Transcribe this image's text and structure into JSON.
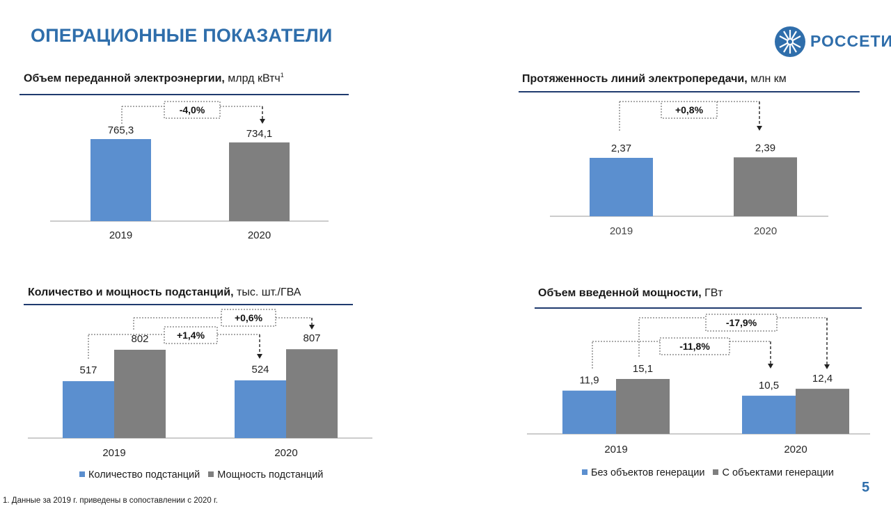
{
  "page": {
    "title": "ОПЕРАЦИОННЫЕ ПОКАЗАТЕЛИ",
    "logo_text": "РОССЕТИ",
    "footnote": "1. Данные за 2019 г. приведены в сопоставлении с 2020 г.",
    "page_number": "5"
  },
  "colors": {
    "blue": "#5b8fcf",
    "gray": "#7f7f7f",
    "accent": "#2f6eab",
    "rule": "#1f3a6e"
  },
  "chart_data": [
    {
      "id": "energy",
      "type": "bar",
      "title_bold": "Объем переданной электроэнергии,",
      "title_unit": "млрд кВтч",
      "title_sup": "1",
      "categories": [
        "2019",
        "2020"
      ],
      "values": [
        765.3,
        734.1
      ],
      "value_labels": [
        "765,3",
        "734,1"
      ],
      "change_labels": [
        "-4,0%"
      ]
    },
    {
      "id": "lines",
      "type": "bar",
      "title_bold": "Протяженность линий электропередачи,",
      "title_unit": "млн км",
      "categories": [
        "2019",
        "2020"
      ],
      "values": [
        2.37,
        2.39
      ],
      "value_labels": [
        "2,37",
        "2,39"
      ],
      "change_labels": [
        "+0,8%"
      ]
    },
    {
      "id": "substations",
      "type": "bar",
      "title_bold": "Количество и мощность подстанций,",
      "title_unit": "тыс. шт./ГВА",
      "categories": [
        "2019",
        "2020"
      ],
      "series": [
        {
          "name": "Количество подстанций",
          "values": [
            517,
            524
          ],
          "labels": [
            "517",
            "524"
          ]
        },
        {
          "name": "Мощность подстанций",
          "values": [
            802,
            807
          ],
          "labels": [
            "802",
            "807"
          ]
        }
      ],
      "change_labels": [
        "+1,4%",
        "+0,6%"
      ],
      "legend": "bottom"
    },
    {
      "id": "capacity",
      "type": "bar",
      "title_bold": "Объем введенной мощности,",
      "title_unit": "ГВт",
      "categories": [
        "2019",
        "2020"
      ],
      "series": [
        {
          "name": "Без объектов генерации",
          "values": [
            11.9,
            10.5
          ],
          "labels": [
            "11,9",
            "10,5"
          ]
        },
        {
          "name": "С объектами генерации",
          "values": [
            15.1,
            12.4
          ],
          "labels": [
            "15,1",
            "12,4"
          ]
        }
      ],
      "change_labels": [
        "-11,8%",
        "-17,9%"
      ],
      "legend": "bottom"
    }
  ]
}
